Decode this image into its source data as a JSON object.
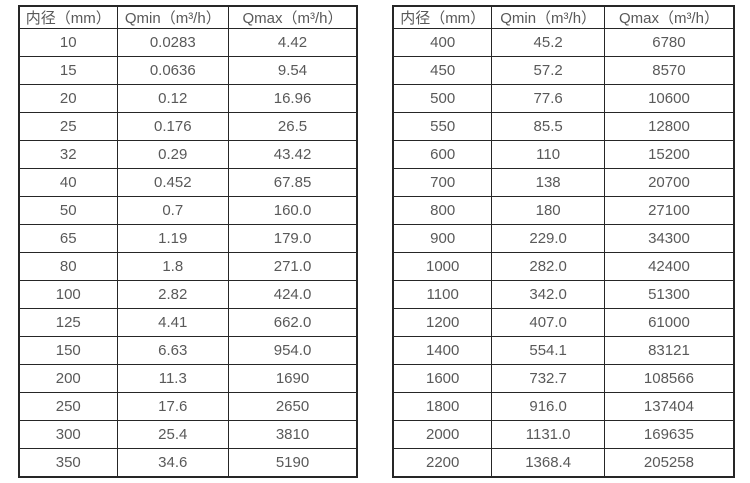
{
  "page": {
    "background_color": "#ffffff",
    "text_color": "#595959",
    "border_color": "#262626"
  },
  "tables": [
    {
      "name": "flow-range-table-small-diameters",
      "headers": [
        "内径（mm）",
        "Qmin（m³/h）",
        "Qmax（m³/h）"
      ],
      "rows": [
        [
          "10",
          "0.0283",
          "4.42"
        ],
        [
          "15",
          "0.0636",
          "9.54"
        ],
        [
          "20",
          "0.12",
          "16.96"
        ],
        [
          "25",
          "0.176",
          "26.5"
        ],
        [
          "32",
          "0.29",
          "43.42"
        ],
        [
          "40",
          "0.452",
          "67.85"
        ],
        [
          "50",
          "0.7",
          "160.0"
        ],
        [
          "65",
          "1.19",
          "179.0"
        ],
        [
          "80",
          "1.8",
          "271.0"
        ],
        [
          "100",
          "2.82",
          "424.0"
        ],
        [
          "125",
          "4.41",
          "662.0"
        ],
        [
          "150",
          "6.63",
          "954.0"
        ],
        [
          "200",
          "11.3",
          "1690"
        ],
        [
          "250",
          "17.6",
          "2650"
        ],
        [
          "300",
          "25.4",
          "3810"
        ],
        [
          "350",
          "34.6",
          "5190"
        ]
      ]
    },
    {
      "name": "flow-range-table-large-diameters",
      "headers": [
        "内径（mm）",
        "Qmin（m³/h）",
        "Qmax（m³/h）"
      ],
      "rows": [
        [
          "400",
          "45.2",
          "6780"
        ],
        [
          "450",
          "57.2",
          "8570"
        ],
        [
          "500",
          "77.6",
          "10600"
        ],
        [
          "550",
          "85.5",
          "12800"
        ],
        [
          "600",
          "110",
          "15200"
        ],
        [
          "700",
          "138",
          "20700"
        ],
        [
          "800",
          "180",
          "27100"
        ],
        [
          "900",
          "229.0",
          "34300"
        ],
        [
          "1000",
          "282.0",
          "42400"
        ],
        [
          "1100",
          "342.0",
          "51300"
        ],
        [
          "1200",
          "407.0",
          "61000"
        ],
        [
          "1400",
          "554.1",
          "83121"
        ],
        [
          "1600",
          "732.7",
          "108566"
        ],
        [
          "1800",
          "916.0",
          "137404"
        ],
        [
          "2000",
          "1131.0",
          "169635"
        ],
        [
          "2200",
          "1368.4",
          "205258"
        ]
      ]
    }
  ]
}
